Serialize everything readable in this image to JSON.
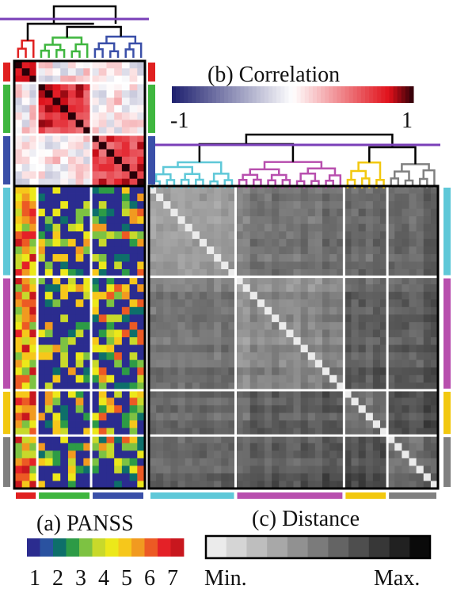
{
  "labels": {
    "panss_title": "(a) PANSS",
    "corr_title": "(b) Correlation",
    "dist_title": "(c) Distance",
    "corr_min": "-1",
    "corr_max": "1",
    "dist_min": "Min.",
    "dist_max": "Max.",
    "panss_ticks": [
      "1",
      "2",
      "3",
      "4",
      "5",
      "6",
      "7"
    ]
  },
  "colors": {
    "panss_scale": [
      "#2b2c8f",
      "#2a52a0",
      "#0e6f6a",
      "#2d9b46",
      "#7dc242",
      "#c8d92b",
      "#ece81a",
      "#f6c71b",
      "#f19a20",
      "#ec5a24",
      "#e42127",
      "#c8171e"
    ],
    "clusters_items": [
      "#e02020",
      "#3fb63f",
      "#3a4fa8"
    ],
    "clusters_subjects": [
      "#5fc8d8",
      "#b84fae",
      "#f2c80f",
      "#808080"
    ],
    "dendrogram_root": "#7a3fb8",
    "corr_low": "#1d1f6e",
    "corr_mid": "#ffffff",
    "corr_high": "#e0101a",
    "corr_extreme": "#2a0008"
  },
  "structure": {
    "item_groups": [
      3,
      7,
      7
    ],
    "subject_groups": [
      12,
      15,
      6,
      7
    ]
  },
  "icons": {
    "dendrogram": "dendrogram-icon"
  }
}
